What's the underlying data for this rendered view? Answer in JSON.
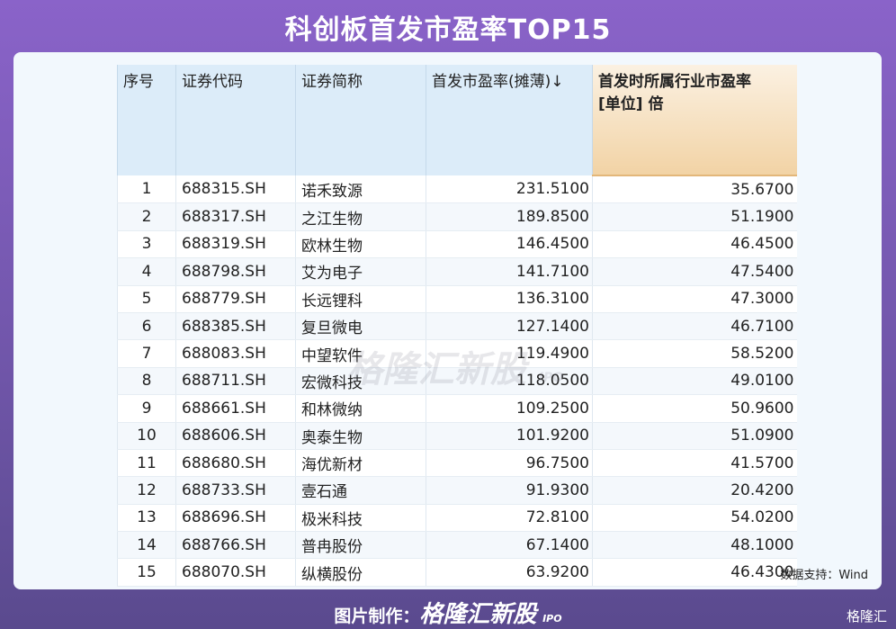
{
  "title": "科创板首发市盈率TOP15",
  "table": {
    "headers": [
      "序号",
      "证券代码",
      "证券简称",
      "首发市盈率(摊薄)↓",
      "首发时所属行业市盈率\n[单位] 倍"
    ],
    "rows": [
      [
        "1",
        "688315.SH",
        "诺禾致源",
        "231.5100",
        "35.6700"
      ],
      [
        "2",
        "688317.SH",
        "之江生物",
        "189.8500",
        "51.1900"
      ],
      [
        "3",
        "688319.SH",
        "欧林生物",
        "146.4500",
        "46.4500"
      ],
      [
        "4",
        "688798.SH",
        "艾为电子",
        "141.7100",
        "47.5400"
      ],
      [
        "5",
        "688779.SH",
        "长远锂科",
        "136.3100",
        "47.3000"
      ],
      [
        "6",
        "688385.SH",
        "复旦微电",
        "127.1400",
        "46.7100"
      ],
      [
        "7",
        "688083.SH",
        "中望软件",
        "119.4900",
        "58.5200"
      ],
      [
        "8",
        "688711.SH",
        "宏微科技",
        "118.0500",
        "49.0100"
      ],
      [
        "9",
        "688661.SH",
        "和林微纳",
        "109.2500",
        "50.9600"
      ],
      [
        "10",
        "688606.SH",
        "奥泰生物",
        "101.9200",
        "51.0900"
      ],
      [
        "11",
        "688680.SH",
        "海优新材",
        "96.7500",
        "41.5700"
      ],
      [
        "12",
        "688733.SH",
        "壹石通",
        "91.9300",
        "20.4200"
      ],
      [
        "13",
        "688696.SH",
        "极米科技",
        "72.8100",
        "54.0200"
      ],
      [
        "14",
        "688766.SH",
        "普冉股份",
        "67.1400",
        "48.1000"
      ],
      [
        "15",
        "688070.SH",
        "纵横股份",
        "63.9200",
        "46.4300"
      ]
    ]
  },
  "source": "数据支持：Wind",
  "watermark": {
    "brand": "格隆汇新股",
    "suffix": "IPO"
  },
  "footer": {
    "label": "图片制作：",
    "brand": "格隆汇新股",
    "suffix": "IPO"
  },
  "logo": "格隆汇"
}
